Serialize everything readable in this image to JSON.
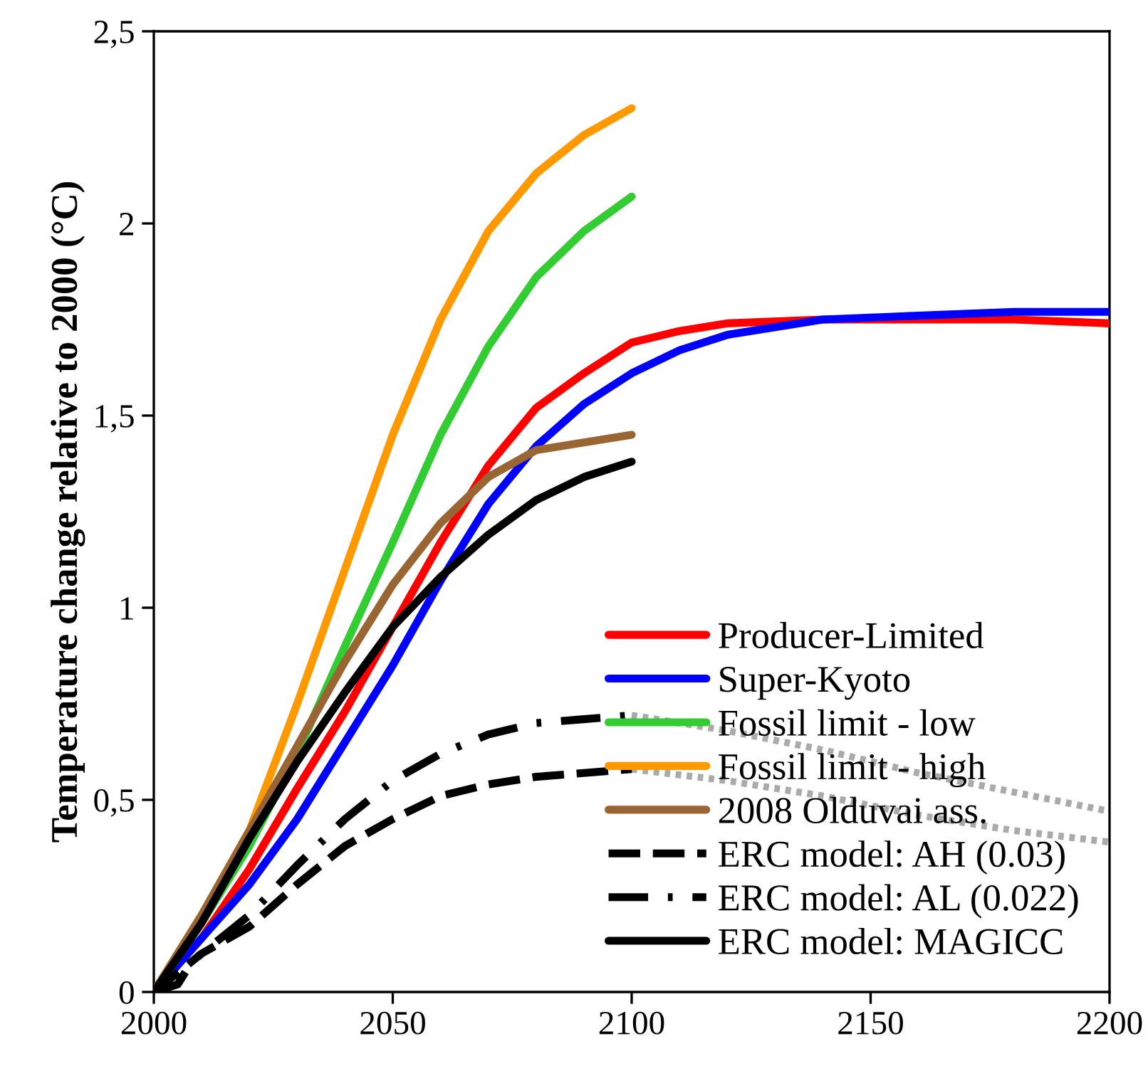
{
  "chart_data": {
    "type": "line",
    "ylabel": "Temperature change relative to 2000 (°C)",
    "xlim": [
      2000,
      2200
    ],
    "xticks": [
      2000,
      2050,
      2100,
      2150,
      2200
    ],
    "ylim": [
      0,
      2.5
    ],
    "yticks": [
      0,
      {
        "value": 0.5,
        "label": "0,5"
      },
      1,
      {
        "value": 1.5,
        "label": "1,5"
      },
      2,
      {
        "value": 2.5,
        "label": "2,5"
      }
    ],
    "grid": false,
    "legend": "bottom right",
    "series": [
      {
        "name": "Producer-Limited",
        "color": "#ff0000",
        "line_style": "solid",
        "x": [
          2000,
          2010,
          2020,
          2030,
          2040,
          2050,
          2060,
          2070,
          2080,
          2090,
          2100,
          2110,
          2120,
          2140,
          2160,
          2180,
          2200
        ],
        "values": [
          0,
          0.14,
          0.32,
          0.53,
          0.73,
          0.95,
          1.17,
          1.37,
          1.52,
          1.61,
          1.69,
          1.72,
          1.74,
          1.75,
          1.75,
          1.75,
          1.74
        ]
      },
      {
        "name": "Super-Kyoto",
        "color": "#0000ff",
        "line_style": "solid",
        "x": [
          2000,
          2010,
          2020,
          2030,
          2040,
          2050,
          2060,
          2070,
          2080,
          2090,
          2100,
          2110,
          2120,
          2140,
          2160,
          2180,
          2200
        ],
        "values": [
          0,
          0.14,
          0.28,
          0.45,
          0.65,
          0.85,
          1.07,
          1.27,
          1.42,
          1.53,
          1.61,
          1.67,
          1.71,
          1.75,
          1.76,
          1.77,
          1.77
        ]
      },
      {
        "name": "Fossil limit - low",
        "color": "#33cc33",
        "line_style": "solid",
        "x": [
          2000,
          2010,
          2020,
          2030,
          2040,
          2050,
          2060,
          2070,
          2080,
          2090,
          2100
        ],
        "values": [
          0,
          0.18,
          0.38,
          0.62,
          0.9,
          1.17,
          1.45,
          1.68,
          1.86,
          1.98,
          2.07
        ]
      },
      {
        "name": "Fossil limit - high",
        "color": "#ff9900",
        "line_style": "solid",
        "x": [
          2000,
          2010,
          2020,
          2030,
          2040,
          2050,
          2060,
          2070,
          2080,
          2090,
          2100
        ],
        "values": [
          0,
          0.2,
          0.42,
          0.75,
          1.1,
          1.45,
          1.75,
          1.98,
          2.13,
          2.23,
          2.3
        ]
      },
      {
        "name": "2008 Olduvai ass.",
        "color": "#996633",
        "line_style": "solid",
        "x": [
          2000,
          2010,
          2020,
          2030,
          2040,
          2050,
          2060,
          2070,
          2080,
          2090,
          2100
        ],
        "values": [
          0,
          0.2,
          0.42,
          0.64,
          0.86,
          1.06,
          1.22,
          1.34,
          1.41,
          1.43,
          1.45
        ]
      },
      {
        "name": "ERC model: AH (0.03)",
        "color": "#000000",
        "line_style": "dashed",
        "x": [
          2000,
          2005,
          2010,
          2020,
          2030,
          2040,
          2050,
          2060,
          2070,
          2080,
          2090,
          2100
        ],
        "values": [
          0,
          0.05,
          0.1,
          0.17,
          0.28,
          0.38,
          0.45,
          0.51,
          0.54,
          0.56,
          0.57,
          0.58
        ]
      },
      {
        "name": "ERC model: AL (0.022)",
        "color": "#000000",
        "line_style": "dashdot",
        "x": [
          2000,
          2005,
          2008,
          2020,
          2030,
          2040,
          2050,
          2060,
          2070,
          2080,
          2090,
          2100
        ],
        "values": [
          0,
          0.02,
          0.08,
          0.2,
          0.33,
          0.45,
          0.55,
          0.62,
          0.67,
          0.7,
          0.71,
          0.72
        ]
      },
      {
        "name": "ERC model: MAGICC",
        "color": "#000000",
        "line_style": "solid",
        "x": [
          2000,
          2010,
          2020,
          2030,
          2040,
          2050,
          2060,
          2070,
          2080,
          2090,
          2100
        ],
        "values": [
          0,
          0.18,
          0.4,
          0.6,
          0.78,
          0.95,
          1.08,
          1.19,
          1.28,
          1.34,
          1.38
        ]
      },
      {
        "color": "#aaaaaa",
        "line_style": "dotted",
        "x": [
          2100,
          2120,
          2140,
          2160,
          2180,
          2200
        ],
        "values": [
          0.58,
          0.55,
          0.51,
          0.46,
          0.42,
          0.39
        ]
      },
      {
        "color": "#aaaaaa",
        "line_style": "dotted",
        "x": [
          2100,
          2120,
          2140,
          2160,
          2180,
          2200
        ],
        "values": [
          0.72,
          0.68,
          0.63,
          0.57,
          0.52,
          0.47
        ]
      }
    ]
  }
}
